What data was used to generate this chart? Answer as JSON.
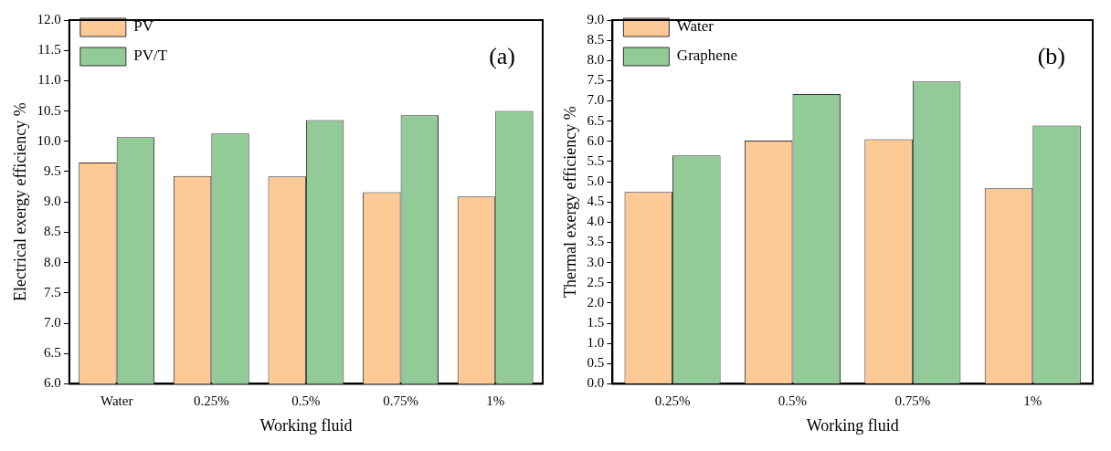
{
  "chart_data": [
    {
      "type": "bar",
      "xlabel": "Working fluid",
      "ylabel": "Electrical exergy efficiency %",
      "annotations": [
        "(a)"
      ],
      "categories": [
        "Water",
        "0.25%",
        "0.5%",
        "0.75%",
        "1%"
      ],
      "series": [
        {
          "name": "PV",
          "color": "#fdc995",
          "values": [
            9.65,
            9.43,
            9.42,
            9.16,
            9.09
          ]
        },
        {
          "name": "PV/T",
          "color": "#93cb98",
          "values": [
            10.07,
            10.13,
            10.35,
            10.43,
            10.5
          ]
        }
      ],
      "ylim": [
        6,
        12
      ],
      "yticks": [
        {
          "value": 6,
          "label": "6.0"
        },
        6.5,
        {
          "value": 7,
          "label": "7.0"
        },
        7.5,
        {
          "value": 8,
          "label": "8.0"
        },
        8.5,
        {
          "value": 9,
          "label": "9.0"
        },
        9.5,
        {
          "value": 10,
          "label": "10.0"
        },
        10.5,
        {
          "value": 11,
          "label": "11.0"
        },
        11.5,
        {
          "value": 12,
          "label": "12.0"
        }
      ],
      "grid": false,
      "legend": "top left"
    },
    {
      "type": "bar",
      "xlabel": "Working fluid",
      "ylabel": "Thermal exergy efficiency %",
      "annotations": [
        "(b)"
      ],
      "categories": [
        "0.25%",
        "0.5%",
        "0.75%",
        "1%"
      ],
      "series": [
        {
          "name": "Water",
          "color": "#fdc995",
          "values": [
            4.75,
            6.02,
            6.05,
            4.84
          ]
        },
        {
          "name": "Graphene",
          "color": "#93cb98",
          "values": [
            5.65,
            7.17,
            7.48,
            6.39
          ]
        }
      ],
      "ylim": [
        0,
        9
      ],
      "yticks": [
        {
          "value": 0,
          "label": "0.0"
        },
        0.5,
        {
          "value": 1,
          "label": "1.0"
        },
        1.5,
        {
          "value": 2,
          "label": "2.0"
        },
        2.5,
        {
          "value": 3,
          "label": "3.0"
        },
        3.5,
        {
          "value": 4,
          "label": "4.0"
        },
        4.5,
        {
          "value": 5,
          "label": "5.0"
        },
        5.5,
        {
          "value": 6,
          "label": "6.0"
        },
        6.5,
        {
          "value": 7,
          "label": "7.0"
        },
        7.5,
        {
          "value": 8,
          "label": "8.0"
        },
        8.5,
        {
          "value": 9,
          "label": "9.0"
        }
      ],
      "grid": false,
      "legend": "top left"
    }
  ]
}
